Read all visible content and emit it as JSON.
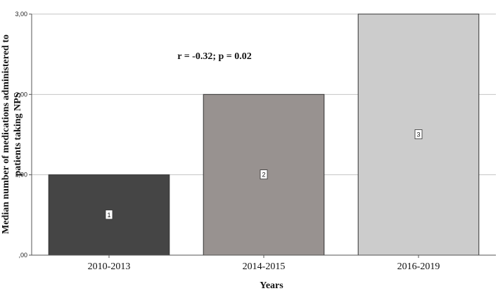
{
  "chart_data": {
    "type": "bar",
    "categories": [
      "2010-2013",
      "2014-2015",
      "2016-2019"
    ],
    "values": [
      1,
      2,
      3
    ],
    "bar_labels": [
      "1",
      "2",
      "3"
    ],
    "bar_colors": [
      "#454545",
      "#989290",
      "#cccccc"
    ],
    "ylim": [
      0,
      3
    ],
    "yticks": [
      0,
      1,
      2,
      3
    ],
    "ytick_labels": [
      ",00",
      "1,00",
      "2,00",
      "3,00"
    ],
    "xlabel": "Years",
    "ylabel_lines": [
      "Median number of medications administered to",
      "patients taking NPS"
    ],
    "annotation": "r = -0.32; p = 0.02",
    "grid": true
  }
}
